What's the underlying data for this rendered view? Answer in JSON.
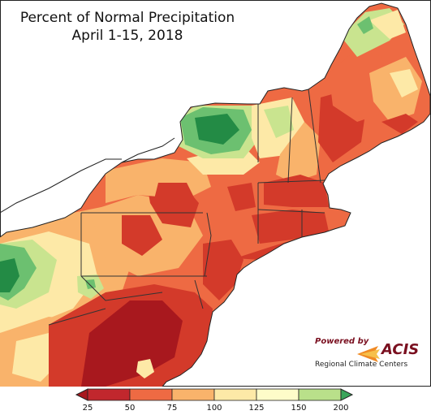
{
  "title": {
    "line1": "Percent of Normal Precipitation",
    "line2": "April 1-15, 2018"
  },
  "logo": {
    "powered_by": "Powered by",
    "name": "ACIS",
    "subtitle": "Regional Climate Centers"
  },
  "legend": {
    "ticks": [
      "25",
      "50",
      "75",
      "100",
      "125",
      "150",
      "200"
    ],
    "colors": [
      "#c1272d",
      "#ee6a43",
      "#f9b36b",
      "#fde9a7",
      "#fefcc9",
      "#b9e08a",
      "#3aa55a"
    ]
  },
  "map_colors": {
    "water": "#ffffff",
    "outside": "#ffffff",
    "very_dry": "#a8181e",
    "dry": "#d33a2a",
    "below": "#ee6a43",
    "slightly_below": "#f9b36b",
    "near": "#fde9a7",
    "above": "#c9e48f",
    "wet": "#6cc070",
    "very_wet": "#238b45"
  }
}
